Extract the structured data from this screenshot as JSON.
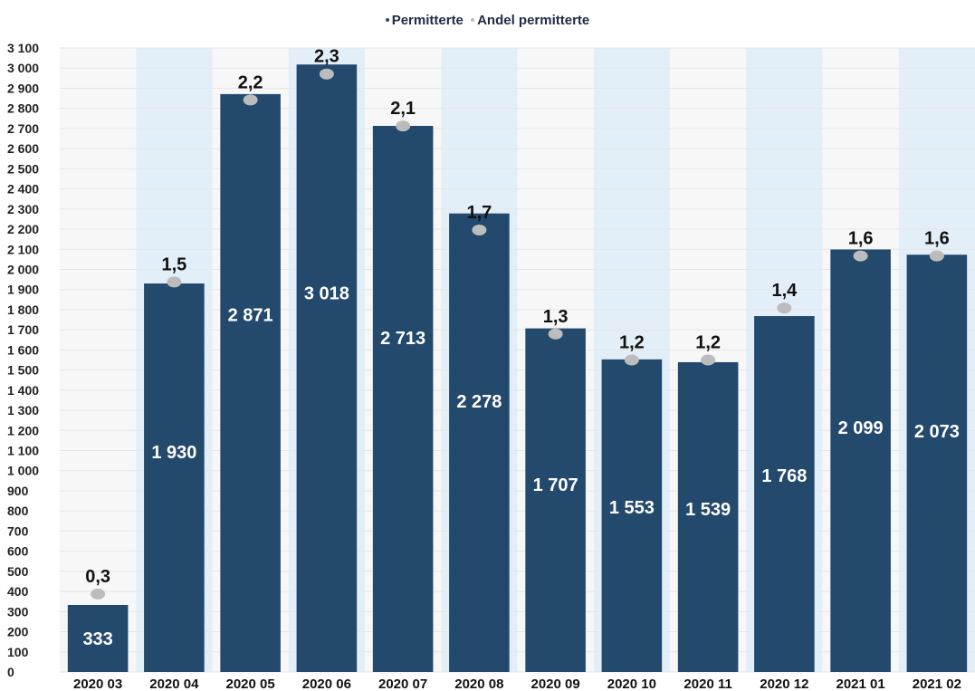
{
  "legend": {
    "series1": "Permitterte",
    "series2": "Andel permitterte"
  },
  "colors": {
    "bar": "#23496d",
    "point": "#bcbcbc",
    "band": "#e3eff8",
    "grid": "#e6e6e6"
  },
  "chart_data": {
    "type": "bar",
    "categories": [
      "2020 03",
      "2020 04",
      "2020 05",
      "2020 06",
      "2020 07",
      "2020 08",
      "2020 09",
      "2020 10",
      "2020 11",
      "2020 12",
      "2021 01",
      "2021 02"
    ],
    "series": [
      {
        "name": "Permitterte",
        "type": "bar",
        "values": [
          333,
          1930,
          2871,
          3018,
          2713,
          2278,
          1707,
          1553,
          1539,
          1768,
          2099,
          2073
        ],
        "labels": [
          "333",
          "1 930",
          "2 871",
          "3 018",
          "2 713",
          "2 278",
          "1 707",
          "1 553",
          "1 539",
          "1 768",
          "2 099",
          "2 073"
        ]
      },
      {
        "name": "Andel permitterte",
        "type": "scatter",
        "values": [
          0.3,
          1.5,
          2.2,
          2.3,
          2.1,
          1.7,
          1.3,
          1.2,
          1.2,
          1.4,
          1.6,
          1.6
        ],
        "labels": [
          "0,3",
          "1,5",
          "2,2",
          "2,3",
          "2,1",
          "1,7",
          "1,3",
          "1,2",
          "1,2",
          "1,4",
          "1,6",
          "1,6"
        ]
      }
    ],
    "yticks": [
      {
        "value": 0,
        "label": "0"
      },
      {
        "value": 100,
        "label": "100"
      },
      {
        "value": 200,
        "label": "200"
      },
      {
        "value": 300,
        "label": "300"
      },
      {
        "value": 400,
        "label": "400"
      },
      {
        "value": 500,
        "label": "500"
      },
      {
        "value": 600,
        "label": "600"
      },
      {
        "value": 700,
        "label": "700"
      },
      {
        "value": 800,
        "label": "800"
      },
      {
        "value": 900,
        "label": "900"
      },
      {
        "value": 1000,
        "label": "1 000"
      },
      {
        "value": 1100,
        "label": "1 100"
      },
      {
        "value": 1200,
        "label": "1 200"
      },
      {
        "value": 1300,
        "label": "1 300"
      },
      {
        "value": 1400,
        "label": "1 400"
      },
      {
        "value": 1500,
        "label": "1 500"
      },
      {
        "value": 1600,
        "label": "1 600"
      },
      {
        "value": 1700,
        "label": "1 700"
      },
      {
        "value": 1800,
        "label": "1 800"
      },
      {
        "value": 1900,
        "label": "1 900"
      },
      {
        "value": 2000,
        "label": "2 000"
      },
      {
        "value": 2100,
        "label": "2 100"
      },
      {
        "value": 2200,
        "label": "2 200"
      },
      {
        "value": 2300,
        "label": "2 300"
      },
      {
        "value": 2400,
        "label": "2 400"
      },
      {
        "value": 2500,
        "label": "2 500"
      },
      {
        "value": 2600,
        "label": "2 600"
      },
      {
        "value": 2700,
        "label": "2 700"
      },
      {
        "value": 2800,
        "label": "2 800"
      },
      {
        "value": 2900,
        "label": "2 900"
      },
      {
        "value": 3000,
        "label": "3 000"
      },
      {
        "value": 3100,
        "label": "3 100"
      }
    ],
    "ylim": [
      0,
      3100
    ],
    "secondary_ylim": [
      0,
      2.4
    ],
    "grid": true,
    "alternating_column_bands": true,
    "legend_position": "top-center"
  }
}
